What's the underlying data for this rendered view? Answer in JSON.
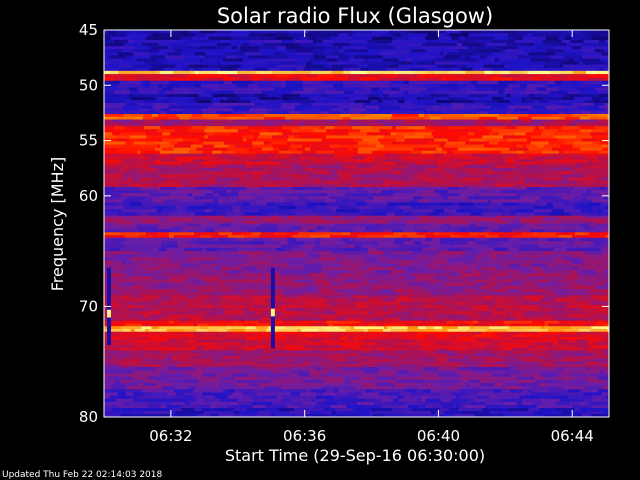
{
  "footer_text": "Updated Thu Feb 22 02:14:03 2018",
  "chart_data": {
    "type": "heatmap",
    "title": "Solar radio Flux (Glasgow)",
    "xlabel": "Start Time (29-Sep-16 06:30:00)",
    "ylabel": "Frequency [MHz]",
    "x_unit": "minutes",
    "xlim": [
      0,
      15.1
    ],
    "ylim": [
      45,
      80
    ],
    "y_reversed": true,
    "x_ticks": [
      {
        "value": 2,
        "label": "06:32"
      },
      {
        "value": 6,
        "label": "06:36"
      },
      {
        "value": 10,
        "label": "06:40"
      },
      {
        "value": 14,
        "label": "06:44"
      }
    ],
    "y_ticks": [
      45,
      50,
      55,
      60,
      70,
      80
    ],
    "colorscale": [
      "#0b0050",
      "#1f13c8",
      "#6a1ea8",
      "#b5114a",
      "#ff0a00",
      "#ff8a00",
      "#ffff90"
    ],
    "bands": [
      {
        "f0": 45.0,
        "f1": 45.9,
        "level": 0.12
      },
      {
        "f0": 45.9,
        "f1": 48.7,
        "level": 0.15
      },
      {
        "f0": 48.7,
        "f1": 49.0,
        "level": 0.95
      },
      {
        "f0": 49.0,
        "f1": 49.6,
        "level": 0.6
      },
      {
        "f0": 49.6,
        "f1": 50.8,
        "level": 0.2
      },
      {
        "f0": 50.8,
        "f1": 51.6,
        "level": 0.13
      },
      {
        "f0": 51.6,
        "f1": 52.6,
        "level": 0.22
      },
      {
        "f0": 52.6,
        "f1": 53.1,
        "level": 0.75
      },
      {
        "f0": 53.1,
        "f1": 53.7,
        "level": 0.45
      },
      {
        "f0": 53.7,
        "f1": 56.2,
        "level": 0.7
      },
      {
        "f0": 56.2,
        "f1": 57.2,
        "level": 0.55
      },
      {
        "f0": 57.2,
        "f1": 59.2,
        "level": 0.48
      },
      {
        "f0": 59.2,
        "f1": 60.6,
        "level": 0.3
      },
      {
        "f0": 60.6,
        "f1": 61.8,
        "level": 0.22
      },
      {
        "f0": 61.8,
        "f1": 62.5,
        "level": 0.42
      },
      {
        "f0": 62.5,
        "f1": 63.3,
        "level": 0.32
      },
      {
        "f0": 63.3,
        "f1": 63.8,
        "level": 0.68
      },
      {
        "f0": 63.8,
        "f1": 65.0,
        "level": 0.3
      },
      {
        "f0": 65.0,
        "f1": 67.0,
        "level": 0.38
      },
      {
        "f0": 67.0,
        "f1": 69.0,
        "level": 0.42
      },
      {
        "f0": 69.0,
        "f1": 71.3,
        "level": 0.5
      },
      {
        "f0": 71.3,
        "f1": 71.8,
        "level": 0.65
      },
      {
        "f0": 71.8,
        "f1": 72.3,
        "level": 0.92
      },
      {
        "f0": 72.3,
        "f1": 73.0,
        "level": 0.6
      },
      {
        "f0": 73.0,
        "f1": 74.0,
        "level": 0.55
      },
      {
        "f0": 74.0,
        "f1": 75.5,
        "level": 0.45
      },
      {
        "f0": 75.5,
        "f1": 77.5,
        "level": 0.35
      },
      {
        "f0": 77.5,
        "f1": 79.2,
        "level": 0.25
      },
      {
        "f0": 79.2,
        "f1": 80.0,
        "level": 0.18
      }
    ],
    "events": [
      {
        "t": 5.05,
        "f0": 66.5,
        "f1": 73.8,
        "level": 0.12
      },
      {
        "t": 5.05,
        "f0": 70.2,
        "f1": 70.9,
        "level": 0.98
      },
      {
        "t": 0.15,
        "f0": 66.5,
        "f1": 73.5,
        "level": 0.12
      },
      {
        "t": 0.15,
        "f0": 70.3,
        "f1": 71.0,
        "level": 0.98
      }
    ]
  }
}
